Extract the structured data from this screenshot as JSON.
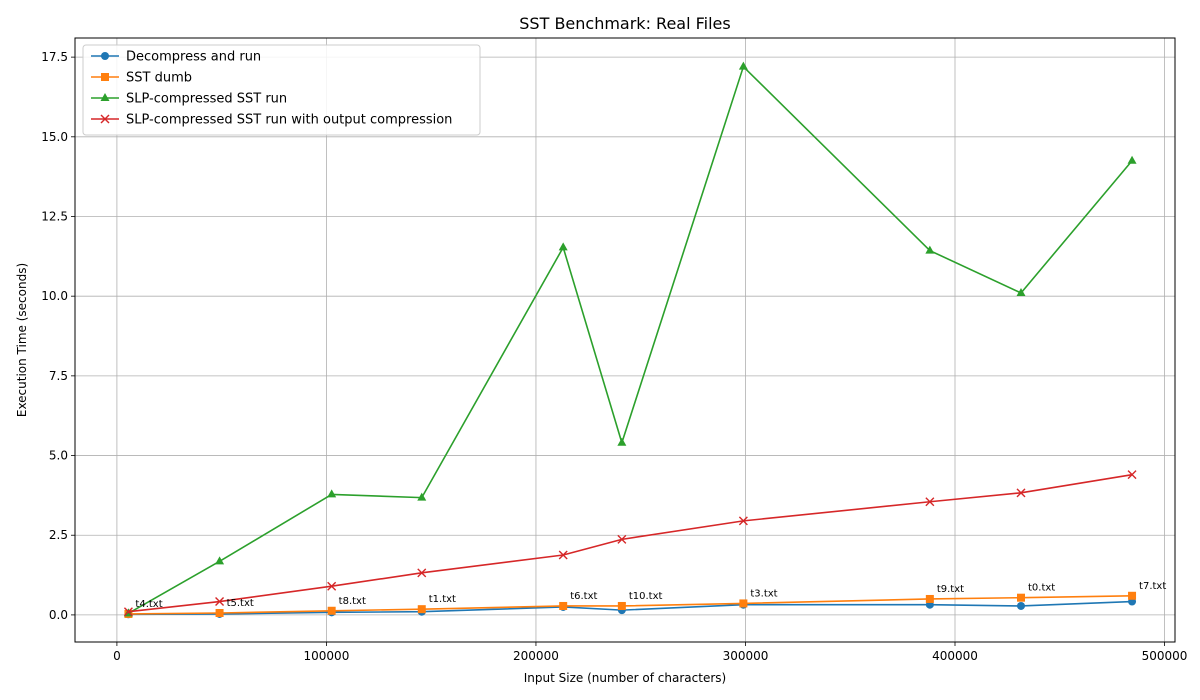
{
  "chart_data": {
    "type": "line",
    "title": "SST Benchmark: Real Files",
    "xlabel": "Input Size (number of characters)",
    "ylabel": "Execution Time (seconds)",
    "xlim": [
      -20000,
      505000
    ],
    "ylim": [
      -0.85,
      18.1
    ],
    "xticks": [
      0,
      100000,
      200000,
      300000,
      400000,
      500000
    ],
    "yticks": [
      0.0,
      2.5,
      5.0,
      7.5,
      10.0,
      12.5,
      15.0,
      17.5
    ],
    "xtick_labels": [
      "0",
      "100000",
      "200000",
      "300000",
      "400000",
      "500000"
    ],
    "ytick_labels": [
      "0.0",
      "2.5",
      "5.0",
      "7.5",
      "10.0",
      "12.5",
      "15.0",
      "17.5"
    ],
    "grid": true,
    "legend_position": "top-left",
    "x": [
      5500,
      49000,
      102500,
      145500,
      213000,
      241000,
      299000,
      388000,
      431500,
      484500
    ],
    "series": [
      {
        "name": "Decompress and run",
        "color": "#1f77b4",
        "marker": "circle",
        "values": [
          0.02,
          0.03,
          0.08,
          0.1,
          0.25,
          0.15,
          0.32,
          0.32,
          0.28,
          0.42
        ]
      },
      {
        "name": "SST dumb",
        "color": "#ff7f0e",
        "marker": "square",
        "values": [
          0.03,
          0.06,
          0.13,
          0.18,
          0.28,
          0.28,
          0.36,
          0.5,
          0.54,
          0.6
        ]
      },
      {
        "name": "SLP-compressed SST run",
        "color": "#2ca02c",
        "marker": "triangle",
        "values": [
          0.05,
          1.68,
          3.78,
          3.68,
          11.53,
          5.4,
          17.2,
          11.43,
          10.1,
          14.25
        ]
      },
      {
        "name": "SLP-compressed SST run with output compression",
        "color": "#d62728",
        "marker": "x",
        "values": [
          0.1,
          0.42,
          0.9,
          1.32,
          1.88,
          2.37,
          2.95,
          3.55,
          3.83,
          4.4
        ]
      }
    ],
    "annotations": [
      {
        "text": "t4.txt",
        "x": 5500,
        "y": 0.03
      },
      {
        "text": "t5.txt",
        "x": 49000,
        "y": 0.06
      },
      {
        "text": "t8.txt",
        "x": 102500,
        "y": 0.13
      },
      {
        "text": "t1.txt",
        "x": 145500,
        "y": 0.18
      },
      {
        "text": "t6.txt",
        "x": 213000,
        "y": 0.28
      },
      {
        "text": "t10.txt",
        "x": 241000,
        "y": 0.28
      },
      {
        "text": "t3.txt",
        "x": 299000,
        "y": 0.36
      },
      {
        "text": "t9.txt",
        "x": 388000,
        "y": 0.5
      },
      {
        "text": "t0.txt",
        "x": 431500,
        "y": 0.54
      },
      {
        "text": "t7.txt",
        "x": 484500,
        "y": 0.6
      }
    ]
  }
}
